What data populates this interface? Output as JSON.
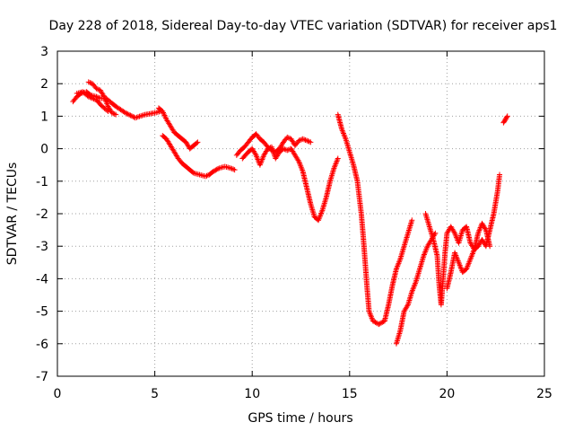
{
  "chart_data": {
    "type": "scatter",
    "title": "Day 228 of 2018, Sidereal Day-to-day VTEC variation (SDTVAR) for receiver aps1",
    "xlabel": "GPS time / hours",
    "ylabel": "SDTVAR / TECUs",
    "xlim": [
      0,
      25
    ],
    "ylim": [
      -7,
      3
    ],
    "xticks": [
      "0",
      "5",
      "10",
      "15",
      "20",
      "25"
    ],
    "yticks": [
      "3",
      "2",
      "1",
      "0",
      "-1",
      "-2",
      "-3",
      "-4",
      "-5",
      "-6",
      "-7"
    ],
    "grid": true,
    "marker": "plus",
    "color": "#ff0000",
    "segments": [
      [
        [
          0.8,
          1.45
        ],
        [
          1.0,
          1.6
        ],
        [
          1.2,
          1.7
        ],
        [
          1.5,
          1.75
        ],
        [
          1.7,
          1.65
        ],
        [
          2.0,
          1.6
        ],
        [
          2.2,
          1.55
        ],
        [
          2.5,
          1.55
        ],
        [
          2.8,
          1.4
        ],
        [
          3.0,
          1.3
        ],
        [
          3.5,
          1.1
        ],
        [
          4.0,
          0.95
        ],
        [
          4.5,
          1.05
        ],
        [
          5.0,
          1.1
        ],
        [
          5.3,
          1.15
        ]
      ],
      [
        [
          1.6,
          2.05
        ],
        [
          1.8,
          2.0
        ],
        [
          2.0,
          1.85
        ],
        [
          2.2,
          1.8
        ],
        [
          2.4,
          1.6
        ],
        [
          2.6,
          1.3
        ],
        [
          2.8,
          1.1
        ],
        [
          3.0,
          1.05
        ]
      ],
      [
        [
          1.0,
          1.7
        ],
        [
          1.3,
          1.75
        ],
        [
          1.6,
          1.6
        ],
        [
          2.0,
          1.5
        ],
        [
          2.3,
          1.3
        ],
        [
          2.6,
          1.15
        ]
      ],
      [
        [
          5.2,
          1.25
        ],
        [
          5.4,
          1.15
        ],
        [
          5.6,
          0.9
        ],
        [
          5.8,
          0.7
        ],
        [
          6.0,
          0.5
        ],
        [
          6.2,
          0.4
        ],
        [
          6.4,
          0.3
        ],
        [
          6.6,
          0.2
        ],
        [
          6.8,
          0.0
        ],
        [
          7.0,
          0.1
        ],
        [
          7.2,
          0.2
        ]
      ],
      [
        [
          5.4,
          0.4
        ],
        [
          5.6,
          0.3
        ],
        [
          5.8,
          0.1
        ],
        [
          6.0,
          -0.1
        ],
        [
          6.2,
          -0.3
        ],
        [
          6.4,
          -0.45
        ],
        [
          6.6,
          -0.55
        ],
        [
          6.8,
          -0.65
        ],
        [
          7.0,
          -0.75
        ],
        [
          7.3,
          -0.8
        ],
        [
          7.6,
          -0.85
        ],
        [
          7.8,
          -0.8
        ],
        [
          8.0,
          -0.7
        ],
        [
          8.3,
          -0.6
        ],
        [
          8.6,
          -0.55
        ],
        [
          8.9,
          -0.6
        ],
        [
          9.1,
          -0.65
        ]
      ],
      [
        [
          9.2,
          -0.2
        ],
        [
          9.4,
          -0.05
        ],
        [
          9.6,
          0.05
        ],
        [
          9.8,
          0.2
        ],
        [
          10.0,
          0.35
        ],
        [
          10.2,
          0.45
        ],
        [
          10.4,
          0.3
        ],
        [
          10.6,
          0.2
        ],
        [
          10.8,
          0.05
        ],
        [
          11.0,
          -0.05
        ],
        [
          11.2,
          -0.1
        ],
        [
          11.4,
          0.0
        ],
        [
          11.6,
          0.2
        ],
        [
          11.8,
          0.35
        ],
        [
          12.0,
          0.3
        ],
        [
          12.2,
          0.1
        ],
        [
          12.4,
          0.25
        ],
        [
          12.6,
          0.3
        ],
        [
          12.8,
          0.25
        ],
        [
          13.0,
          0.2
        ]
      ],
      [
        [
          9.5,
          -0.3
        ],
        [
          9.8,
          -0.1
        ],
        [
          10.0,
          0.0
        ],
        [
          10.2,
          -0.2
        ],
        [
          10.4,
          -0.5
        ],
        [
          10.6,
          -0.2
        ],
        [
          10.8,
          0.0
        ],
        [
          11.0,
          0.05
        ],
        [
          11.2,
          -0.3
        ],
        [
          11.4,
          -0.1
        ],
        [
          11.6,
          0.0
        ],
        [
          11.8,
          -0.05
        ],
        [
          12.0,
          0.0
        ],
        [
          12.2,
          -0.2
        ],
        [
          12.4,
          -0.4
        ],
        [
          12.6,
          -0.7
        ],
        [
          12.8,
          -1.2
        ],
        [
          13.0,
          -1.7
        ],
        [
          13.2,
          -2.1
        ],
        [
          13.4,
          -2.2
        ],
        [
          13.6,
          -1.9
        ],
        [
          13.8,
          -1.5
        ],
        [
          14.0,
          -1.0
        ],
        [
          14.2,
          -0.6
        ],
        [
          14.4,
          -0.3
        ]
      ],
      [
        [
          14.4,
          1.05
        ],
        [
          14.6,
          0.6
        ],
        [
          14.8,
          0.3
        ],
        [
          15.0,
          -0.1
        ],
        [
          15.2,
          -0.5
        ],
        [
          15.4,
          -1.0
        ],
        [
          15.5,
          -1.5
        ],
        [
          15.6,
          -2.0
        ],
        [
          15.7,
          -2.7
        ],
        [
          15.8,
          -3.5
        ],
        [
          15.9,
          -4.3
        ],
        [
          16.0,
          -5.0
        ],
        [
          16.2,
          -5.3
        ],
        [
          16.5,
          -5.4
        ],
        [
          16.8,
          -5.3
        ],
        [
          17.0,
          -4.8
        ],
        [
          17.2,
          -4.2
        ],
        [
          17.4,
          -3.7
        ],
        [
          17.6,
          -3.4
        ],
        [
          17.8,
          -3.0
        ],
        [
          18.0,
          -2.6
        ],
        [
          18.2,
          -2.2
        ]
      ],
      [
        [
          17.4,
          -6.0
        ],
        [
          17.6,
          -5.6
        ],
        [
          17.8,
          -5.0
        ],
        [
          18.0,
          -4.8
        ],
        [
          18.2,
          -4.4
        ],
        [
          18.4,
          -4.1
        ],
        [
          18.6,
          -3.7
        ],
        [
          18.8,
          -3.3
        ],
        [
          19.0,
          -3.0
        ],
        [
          19.2,
          -2.8
        ],
        [
          19.4,
          -2.6
        ]
      ],
      [
        [
          18.9,
          -2.0
        ],
        [
          19.1,
          -2.4
        ],
        [
          19.3,
          -2.8
        ],
        [
          19.5,
          -3.3
        ],
        [
          19.6,
          -4.2
        ],
        [
          19.7,
          -4.8
        ],
        [
          19.8,
          -4.0
        ],
        [
          19.9,
          -3.2
        ],
        [
          20.0,
          -2.6
        ],
        [
          20.2,
          -2.4
        ],
        [
          20.4,
          -2.6
        ],
        [
          20.6,
          -2.9
        ],
        [
          20.8,
          -2.5
        ],
        [
          21.0,
          -2.4
        ],
        [
          21.2,
          -2.9
        ],
        [
          21.4,
          -3.1
        ],
        [
          21.6,
          -2.6
        ],
        [
          21.8,
          -2.3
        ],
        [
          22.0,
          -2.5
        ],
        [
          22.2,
          -3.0
        ]
      ],
      [
        [
          20.0,
          -4.3
        ],
        [
          20.2,
          -3.8
        ],
        [
          20.4,
          -3.2
        ],
        [
          20.6,
          -3.5
        ],
        [
          20.8,
          -3.8
        ],
        [
          21.0,
          -3.7
        ],
        [
          21.2,
          -3.4
        ],
        [
          21.4,
          -3.1
        ],
        [
          21.6,
          -3.0
        ],
        [
          21.8,
          -2.8
        ],
        [
          22.0,
          -3.0
        ],
        [
          22.2,
          -2.5
        ],
        [
          22.4,
          -2.0
        ],
        [
          22.6,
          -1.3
        ],
        [
          22.7,
          -0.8
        ]
      ],
      [
        [
          22.9,
          0.8
        ],
        [
          23.0,
          0.9
        ],
        [
          23.1,
          1.0
        ]
      ]
    ]
  }
}
